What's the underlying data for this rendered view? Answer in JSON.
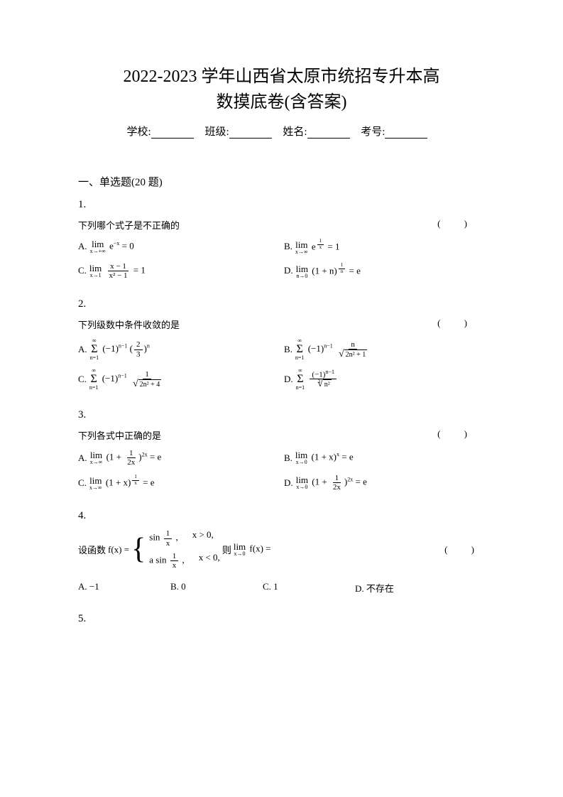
{
  "title_line1": "2022-2023 学年山西省太原市统招专升本高",
  "title_line2": "数摸底卷(含答案)",
  "form": {
    "school": "学校:",
    "class": "班级:",
    "name": "姓名:",
    "exam_no": "考号:"
  },
  "section1": "一、单选题(20 题)",
  "q1": {
    "num": "1.",
    "prompt": "下列哪个式子是不正确的",
    "paren": "( )",
    "optA_label": "A.",
    "optA_expr_eq": " = 0",
    "optB_label": "B.",
    "optB_expr_eq": " = 1",
    "optC_label": "C.",
    "optC_expr_eq": " = 1",
    "optD_label": "D.",
    "optD_expr_eq": " = e"
  },
  "q2": {
    "num": "2.",
    "prompt": "下列级数中条件收敛的是",
    "paren": "( )",
    "optA_label": "A.",
    "optB_label": "B.",
    "optC_label": "C.",
    "optD_label": "D."
  },
  "q3": {
    "num": "3.",
    "prompt": "下列各式中正确的是",
    "paren": "( )",
    "optA_label": "A.",
    "optA_eq": " = e",
    "optB_label": "B.",
    "optB_eq": " = e",
    "optC_label": "C.",
    "optC_eq": " = e",
    "optD_label": "D.",
    "optD_eq": " = e"
  },
  "q4": {
    "num": "4.",
    "prompt_pre": "设函数 ",
    "fx": "f(x) = ",
    "piece1_expr": "sin",
    "piece1_cond": "x > 0,",
    "piece2_expr": "a sin",
    "piece2_cond": "x < 0,",
    "mid": "则",
    "limfx": "f(x) = ",
    "paren": "( )",
    "optA": "A. −1",
    "optB": "B. 0",
    "optC": "C. 1",
    "optD": "D. 不存在"
  },
  "q5": {
    "num": "5."
  },
  "math_labels": {
    "lim": "lim",
    "sum_top": "∞",
    "frac_1": "1",
    "frac_x": "x",
    "frac_2": "2",
    "frac_3": "3",
    "xm1": "x − 1",
    "x2m1": "x² − 1",
    "n": "n",
    "sqrt_2n2p1": "2n² + 1",
    "sqrt_2n2p4": "2n² + 4",
    "n2": "n²",
    "m1nm1": "(−1)",
    "oneplus2x": "1 + ",
    "one2x": "2x",
    "oneplusxp": "(1 + x)",
    "lim_xinf": "x→∞",
    "lim_xpinf": "x→+∞",
    "lim_x0": "x→0",
    "lim_x1": "x→1",
    "lim_n0": "n→0",
    "sum_n1": "n=1",
    "e_negx": "e",
    "e_1x": "e",
    "oneplusn": "(1 + n)"
  }
}
